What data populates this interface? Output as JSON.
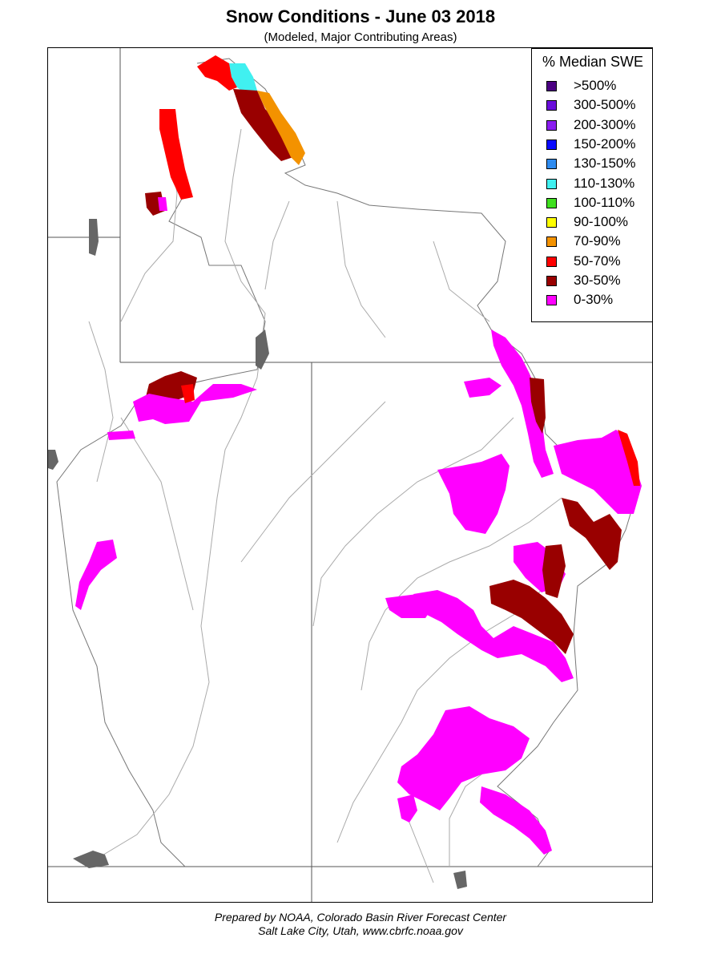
{
  "title": "Snow Conditions - June 03 2018",
  "subtitle": "(Modeled, Major Contributing Areas)",
  "legend": {
    "title": "% Median SWE",
    "items": [
      {
        "label": ">500%",
        "color": "#4b0082"
      },
      {
        "label": "300-500%",
        "color": "#6a0ddb"
      },
      {
        "label": "200-300%",
        "color": "#8a1cf0"
      },
      {
        "label": "150-200%",
        "color": "#0a0aff"
      },
      {
        "label": "130-150%",
        "color": "#2e8bef"
      },
      {
        "label": "110-130%",
        "color": "#40f0f0"
      },
      {
        "label": "100-110%",
        "color": "#3fe01f"
      },
      {
        "label": "90-100%",
        "color": "#ffff00"
      },
      {
        "label": "70-90%",
        "color": "#f39200"
      },
      {
        "label": "50-70%",
        "color": "#ff0000"
      },
      {
        "label": "30-50%",
        "color": "#990000"
      },
      {
        "label": "0-30%",
        "color": "#ff00ff"
      }
    ]
  },
  "credit": {
    "line1": "Prepared by NOAA, Colorado Basin River Forecast Center",
    "line2": "Salt Lake City, Utah, www.cbrfc.noaa.gov"
  }
}
